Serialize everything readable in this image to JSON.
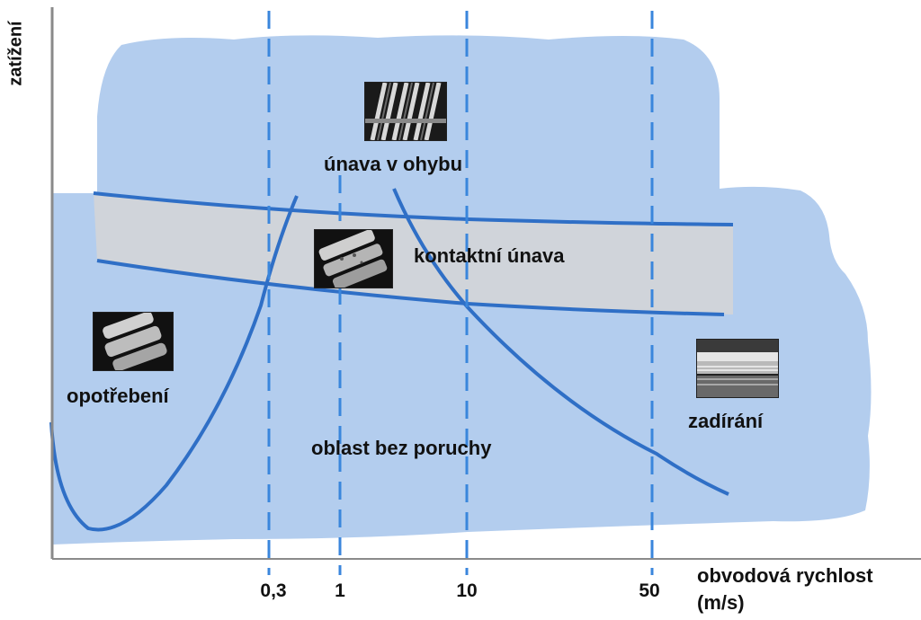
{
  "axes": {
    "y_label": "zatížení",
    "x_label_line1": "obvodová rychlost",
    "x_label_line2": "(m/s)",
    "x_ticks": [
      "0,3",
      "1",
      "10",
      "50"
    ]
  },
  "regions": {
    "bending_fatigue": "únava v ohybu",
    "contact_fatigue": "kontaktní únava",
    "wear": "opotřebení",
    "scuffing": "zadírání",
    "no_failure": "oblast bez poruchy"
  },
  "icons": {
    "bending_fatigue": "gear-teeth-photo",
    "contact_fatigue": "pitted-tooth-photo",
    "wear": "worn-tooth-photo",
    "scuffing": "scuffed-tooth-photo"
  },
  "colors": {
    "region_fill": "#b3cdee",
    "band_fill": "#d2d4d8",
    "curve": "#2f6fc6",
    "dashed_line": "#3a86dc",
    "axis": "#8a8a8a"
  }
}
